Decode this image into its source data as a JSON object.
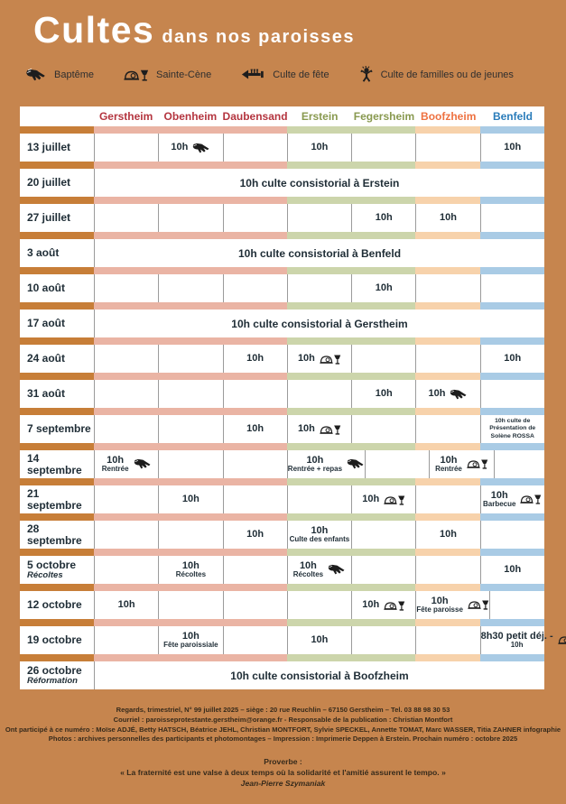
{
  "header": {
    "title_main": "Cultes",
    "title_sub": "dans nos paroisses"
  },
  "legend": {
    "items": [
      {
        "icon": "bapteme-icon",
        "label": "Baptême"
      },
      {
        "icon": "sainte-cene-icon",
        "label": "Sainte-Cène"
      },
      {
        "icon": "culte-de-fete-icon",
        "label": "Culte de fête"
      },
      {
        "icon": "familles-icon",
        "label": "Culte de familles ou de jeunes"
      }
    ]
  },
  "colors": {
    "background": "#c6854e",
    "header_red": "#b4353f",
    "header_green": "#88994f",
    "header_orange": "#ee7140",
    "header_blue": "#2a7cba",
    "strip_date": "#c77e38",
    "strip_red": "#eab4a4",
    "strip_green": "#ccd5ab",
    "strip_orange": "#f7d2ab",
    "strip_blue": "#a9cbe5",
    "cell_text": "#1f2d36"
  },
  "table": {
    "columns": [
      {
        "label": "Gerstheim",
        "group": "red"
      },
      {
        "label": "Obenheim",
        "group": "red"
      },
      {
        "label": "Daubensand",
        "group": "red"
      },
      {
        "label": "Erstein",
        "group": "green"
      },
      {
        "label": "Fegersheim",
        "group": "green"
      },
      {
        "label": "Boofzheim",
        "group": "orange"
      },
      {
        "label": "Benfeld",
        "group": "blue"
      }
    ],
    "rows": [
      {
        "date": "13 juillet",
        "cells": [
          null,
          {
            "time": "10h",
            "icon": "bapteme"
          },
          null,
          {
            "time": "10h"
          },
          null,
          null,
          {
            "time": "10h"
          }
        ]
      },
      {
        "date": "20 juillet",
        "merged": "10h culte consistorial à Erstein"
      },
      {
        "date": "27 juillet",
        "cells": [
          null,
          null,
          null,
          null,
          {
            "time": "10h"
          },
          {
            "time": "10h"
          },
          null
        ]
      },
      {
        "date": "3 août",
        "merged": "10h culte consistorial à Benfeld"
      },
      {
        "date": "10 août",
        "cells": [
          null,
          null,
          null,
          null,
          {
            "time": "10h"
          },
          null,
          null
        ]
      },
      {
        "date": "17 août",
        "merged": "10h culte consistorial à Gerstheim"
      },
      {
        "date": "24 août",
        "cells": [
          null,
          null,
          {
            "time": "10h"
          },
          {
            "time": "10h",
            "icon": "cene"
          },
          null,
          null,
          {
            "time": "10h"
          }
        ]
      },
      {
        "date": "31 août",
        "cells": [
          null,
          null,
          null,
          null,
          {
            "time": "10h"
          },
          {
            "time": "10h",
            "icon": "bapteme"
          },
          null
        ]
      },
      {
        "date": "7 septembre",
        "cells": [
          null,
          null,
          {
            "time": "10h"
          },
          {
            "time": "10h",
            "icon": "cene"
          },
          null,
          null,
          {
            "small": "10h culte de Présentation de Solène ROSSA"
          }
        ]
      },
      {
        "date": "14 septembre",
        "cells": [
          {
            "time": "10h",
            "note": "Rentrée",
            "icon": "bapteme"
          },
          null,
          null,
          {
            "time": "10h",
            "note": "Rentrée + repas",
            "icon": "bapteme"
          },
          null,
          {
            "time": "10h",
            "note": "Rentrée",
            "icon": "cene"
          },
          null
        ]
      },
      {
        "date": "21 septembre",
        "cells": [
          null,
          {
            "time": "10h"
          },
          null,
          null,
          {
            "time": "10h",
            "icon": "cene"
          },
          null,
          {
            "time": "10h",
            "note": "Barbecue",
            "icon": "cene"
          }
        ]
      },
      {
        "date": "28 septembre",
        "cells": [
          null,
          null,
          {
            "time": "10h"
          },
          {
            "time": "10h",
            "note": "Culte des enfants"
          },
          null,
          {
            "time": "10h"
          },
          null
        ]
      },
      {
        "date": "5 octobre",
        "date_note": "Récoltes",
        "cells": [
          null,
          {
            "time": "10h",
            "note": "Récoltes"
          },
          null,
          {
            "time": "10h",
            "note": "Récoltes",
            "icon": "bapteme"
          },
          null,
          null,
          {
            "time": "10h"
          }
        ]
      },
      {
        "date": "12 octobre",
        "cells": [
          {
            "time": "10h"
          },
          null,
          null,
          null,
          {
            "time": "10h",
            "icon": "cene"
          },
          {
            "time": "10h",
            "note": "Fête paroisse",
            "icon": "cene"
          },
          null
        ]
      },
      {
        "date": "19 octobre",
        "cells": [
          null,
          {
            "time": "10h",
            "note": "Fête paroissiale"
          },
          null,
          {
            "time": "10h"
          },
          null,
          null,
          {
            "time": "8h30 petit déj. -",
            "note": "10h",
            "icon": "cene"
          }
        ]
      },
      {
        "date": "26 octobre",
        "date_note": "Réformation",
        "merged": "10h culte consistorial à Boofzheim"
      }
    ]
  },
  "footer": {
    "lines": [
      "Regards, trimestriel, N° 99 juillet 2025 – siège : 20 rue Reuchlin – 67150 Gerstheim – Tel. 03 88 98 30 53",
      "Courriel : paroisseprotestante.gerstheim@orange.fr - Responsable de la publication : Christian Montfort",
      "Ont participé à ce numéro : Moïse ADJÉ, Betty HATSCH, Béatrice JEHL, Christian MONTFORT, Sylvie SPECKEL, Annette TOMAT, Marc WASSER, Titia ZAHNER infographie",
      "Photos : archives personnelles des participants et photomontages – Impression : Imprimerie Deppen à Erstein. Prochain numéro : octobre 2025"
    ],
    "proverb_label": "Proverbe :",
    "proverb": "« La fraternité est une valse à deux temps où la solidarité et l'amitié assurent le tempo. »",
    "proverb_author": "Jean-Pierre Szymaniak"
  }
}
